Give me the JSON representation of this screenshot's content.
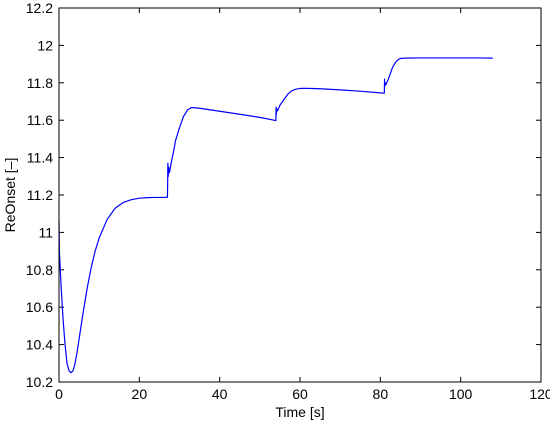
{
  "chart_data": {
    "type": "line",
    "title": "",
    "xlabel": "Time [s]",
    "ylabel": "ReOnset [–]",
    "xlim": [
      0,
      120
    ],
    "ylim": [
      10.2,
      12.2
    ],
    "xticks": [
      0,
      20,
      40,
      60,
      80,
      100,
      120
    ],
    "yticks": [
      10.2,
      10.4,
      10.6,
      10.8,
      11,
      11.2,
      11.4,
      11.6,
      11.8,
      12,
      12.2
    ],
    "xtick_labels": [
      "0",
      "20",
      "40",
      "60",
      "80",
      "100",
      "120"
    ],
    "ytick_labels": [
      "10.2",
      "10.4",
      "10.6",
      "10.8",
      "11",
      "11.2",
      "11.4",
      "11.6",
      "11.8",
      "12",
      "12.2"
    ],
    "grid": false,
    "legend": "none",
    "series": [
      {
        "color": "#0000ff",
        "x": [
          0,
          0.1,
          0.5,
          1,
          1.5,
          2,
          2.5,
          3,
          3.5,
          4,
          4.5,
          5,
          6,
          7,
          8,
          9,
          10,
          12,
          14,
          16,
          18,
          20,
          22,
          24,
          26,
          27,
          27.05,
          27.1,
          27.2,
          27.3,
          27.5,
          28,
          28.5,
          29,
          30,
          31,
          32,
          33,
          35,
          40,
          45,
          50,
          54,
          54.05,
          54.1,
          54.2,
          54.4,
          54.6,
          55,
          56,
          57,
          58,
          59,
          60,
          62,
          65,
          70,
          75,
          80,
          81,
          81.05,
          81.1,
          81.2,
          81.4,
          81.6,
          82,
          82.5,
          83,
          83.5,
          84,
          84.5,
          85,
          86,
          90,
          95,
          100,
          105,
          108
        ],
        "y": [
          11.06,
          10.9,
          10.72,
          10.54,
          10.4,
          10.3,
          10.26,
          10.25,
          10.26,
          10.3,
          10.36,
          10.43,
          10.57,
          10.7,
          10.81,
          10.9,
          10.97,
          11.07,
          11.13,
          11.16,
          11.175,
          11.183,
          11.186,
          11.187,
          11.187,
          11.188,
          11.26,
          11.37,
          11.3,
          11.35,
          11.32,
          11.38,
          11.43,
          11.49,
          11.56,
          11.62,
          11.655,
          11.668,
          11.664,
          11.648,
          11.632,
          11.615,
          11.598,
          11.67,
          11.63,
          11.66,
          11.65,
          11.66,
          11.68,
          11.71,
          11.74,
          11.758,
          11.766,
          11.77,
          11.77,
          11.768,
          11.762,
          11.755,
          11.746,
          11.745,
          11.82,
          11.78,
          11.8,
          11.79,
          11.8,
          11.82,
          11.85,
          11.88,
          11.9,
          11.915,
          11.925,
          11.93,
          11.932,
          11.933,
          11.933,
          11.933,
          11.933,
          11.932
        ]
      }
    ]
  }
}
